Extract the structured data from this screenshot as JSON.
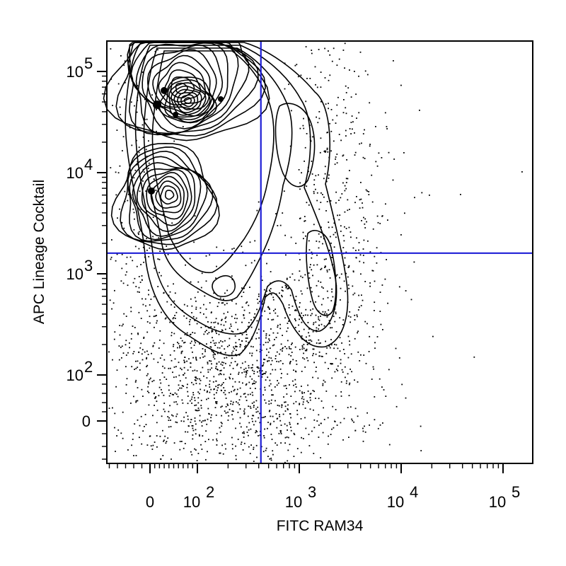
{
  "chart_data": {
    "type": "contour-scatter",
    "xlabel": "FITC RAM34",
    "ylabel": "APC Lineage Cocktail",
    "x_scale": "biexponential",
    "y_scale": "biexponential",
    "x_ticks": [
      {
        "label": "0",
        "value": 0
      },
      {
        "label": "10",
        "exp": "2",
        "value": 100
      },
      {
        "label": "10",
        "exp": "3",
        "value": 1000
      },
      {
        "label": "10",
        "exp": "4",
        "value": 10000
      },
      {
        "label": "10",
        "exp": "5",
        "value": 100000
      }
    ],
    "y_ticks": [
      {
        "label": "0",
        "value": 0
      },
      {
        "label": "10",
        "exp": "2",
        "value": 100
      },
      {
        "label": "10",
        "exp": "3",
        "value": 1000
      },
      {
        "label": "10",
        "exp": "4",
        "value": 10000
      },
      {
        "label": "10",
        "exp": "5",
        "value": 100000
      }
    ],
    "gate": {
      "x": 420,
      "y": 1600
    },
    "populations": [
      {
        "x": 80,
        "y": 55000
      },
      {
        "x": 40,
        "y": 6500
      },
      {
        "x": 1800,
        "y": 900
      }
    ],
    "grid": false,
    "legend": "none",
    "colors": {
      "gate": "#1f1fd6",
      "contour": "#000000"
    }
  }
}
